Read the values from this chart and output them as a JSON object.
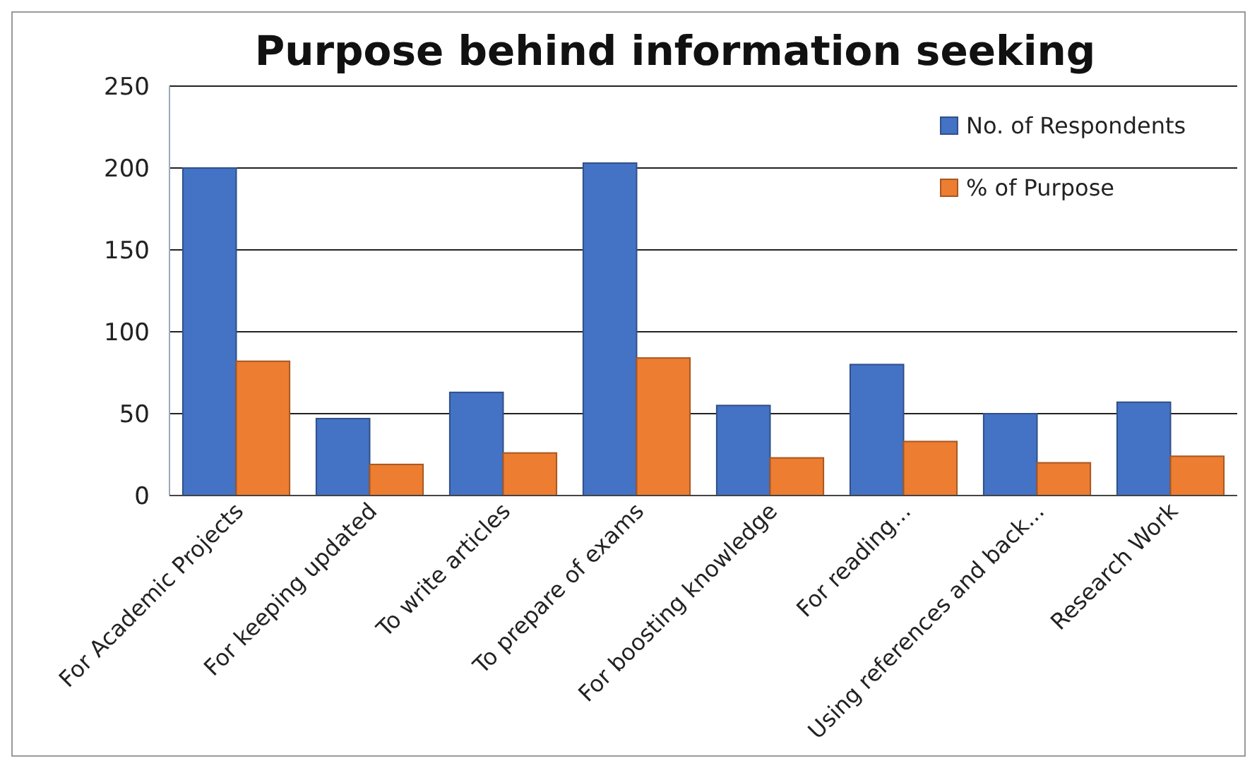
{
  "chart_data": {
    "type": "bar",
    "title": "Purpose behind information seeking",
    "categories": [
      "For Academic Projects",
      "For keeping updated",
      "To write articles",
      "To prepare of exams",
      "For boosting knowledge",
      "For reading...",
      "Using references and back...",
      "Research Work"
    ],
    "series": [
      {
        "name": "No. of Respondents",
        "color": "#4472c4",
        "values": [
          200,
          47,
          63,
          203,
          55,
          80,
          50,
          57
        ]
      },
      {
        "name": "% of Purpose",
        "color": "#ed7d31",
        "values": [
          82,
          19,
          26,
          84,
          23,
          33,
          20,
          24
        ]
      }
    ],
    "ylim": [
      0,
      250
    ],
    "yticks": [
      0,
      50,
      100,
      150,
      200,
      250
    ],
    "grid": "y",
    "legend": "top right"
  }
}
